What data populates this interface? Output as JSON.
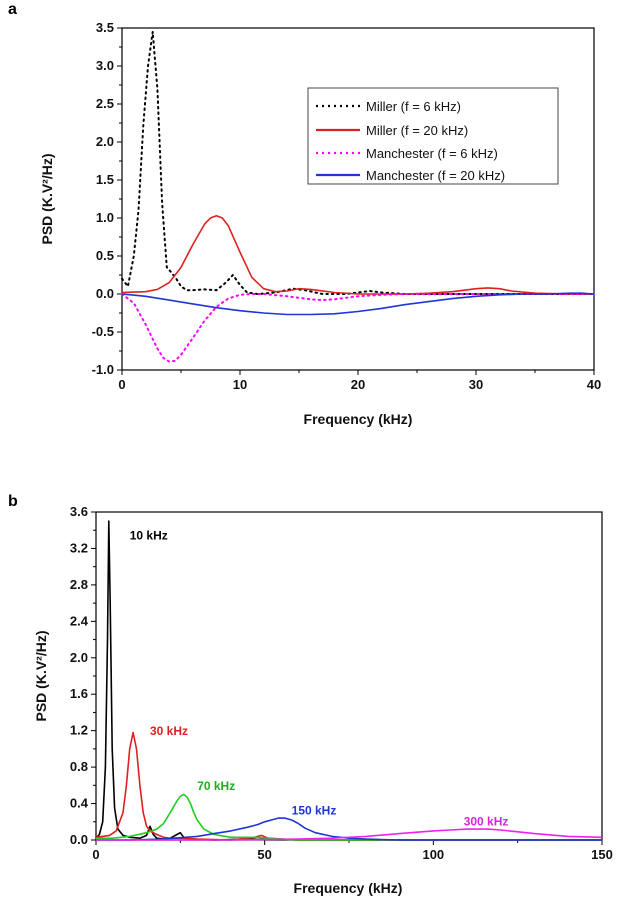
{
  "chart_data": [
    {
      "panel": "a",
      "type": "line",
      "title": "",
      "xlabel": "Frequency (kHz)",
      "ylabel": "PSD (K.V²/Hz)",
      "xlim": [
        0,
        40
      ],
      "ylim": [
        -1.0,
        3.5
      ],
      "xticks": [
        0,
        10,
        20,
        30,
        40
      ],
      "yticks": [
        -1.0,
        -0.5,
        0.0,
        0.5,
        1.0,
        1.5,
        2.0,
        2.5,
        3.0,
        3.5
      ],
      "legend_position": "top-right",
      "series": [
        {
          "name": "Miller (f = 6 kHz)",
          "color": "#000000",
          "style": "dotted",
          "x": [
            0,
            0.5,
            1.0,
            1.4,
            1.8,
            2.2,
            2.6,
            3.0,
            3.4,
            3.8,
            4.2,
            4.6,
            5.0,
            5.5,
            6.0,
            7.0,
            8.0,
            8.8,
            9.4,
            10.0,
            10.6,
            11.5,
            13.0,
            14.5,
            15.5,
            17.0,
            19.0,
            21.0,
            22.0,
            24.0,
            28.0,
            32.0,
            36.0,
            40.0
          ],
          "y": [
            0.2,
            0.1,
            0.5,
            1.1,
            2.2,
            3.0,
            3.45,
            2.7,
            1.2,
            0.35,
            0.28,
            0.2,
            0.1,
            0.05,
            0.05,
            0.06,
            0.05,
            0.15,
            0.25,
            0.12,
            0.02,
            0.0,
            0.02,
            0.07,
            0.05,
            0.0,
            0.0,
            0.04,
            0.02,
            0.0,
            0.0,
            0.0,
            0.0,
            0.0
          ]
        },
        {
          "name": "Miller (f = 20 kHz)",
          "color": "#e02020",
          "style": "solid",
          "x": [
            0,
            2,
            3,
            4,
            5,
            6,
            7,
            7.5,
            8,
            8.5,
            9,
            10,
            11,
            12,
            13,
            14,
            15,
            16,
            18,
            20,
            22,
            24,
            26,
            28,
            29,
            30,
            31,
            32,
            33,
            35,
            38,
            40
          ],
          "y": [
            0.02,
            0.03,
            0.06,
            0.15,
            0.35,
            0.65,
            0.92,
            1.0,
            1.03,
            1.0,
            0.9,
            0.55,
            0.22,
            0.07,
            0.03,
            0.04,
            0.07,
            0.06,
            0.02,
            0.0,
            0.0,
            0.0,
            0.01,
            0.03,
            0.05,
            0.07,
            0.08,
            0.07,
            0.04,
            0.01,
            0.0,
            0.0
          ]
        },
        {
          "name": "Manchester (f = 6 kHz)",
          "color": "#ff00ff",
          "style": "dotted",
          "x": [
            0,
            1,
            2,
            3,
            3.5,
            4,
            4.5,
            5,
            6,
            7,
            8,
            9,
            10,
            11,
            12,
            14,
            16,
            17,
            18,
            19,
            20,
            22,
            24,
            26,
            28,
            32,
            36,
            40
          ],
          "y": [
            0.0,
            -0.12,
            -0.4,
            -0.72,
            -0.84,
            -0.89,
            -0.88,
            -0.8,
            -0.58,
            -0.35,
            -0.17,
            -0.06,
            -0.01,
            0.0,
            0.0,
            -0.03,
            -0.07,
            -0.08,
            -0.07,
            -0.05,
            -0.03,
            -0.01,
            0.0,
            0.0,
            0.0,
            0.0,
            0.0,
            0.0
          ]
        },
        {
          "name": "Manchester (f = 20 kHz)",
          "color": "#1f35d6",
          "style": "solid",
          "x": [
            0,
            2,
            4,
            6,
            8,
            10,
            12,
            14,
            16,
            18,
            20,
            22,
            24,
            26,
            28,
            30,
            32,
            34,
            36,
            38,
            39,
            40
          ],
          "y": [
            0.0,
            -0.03,
            -0.08,
            -0.13,
            -0.18,
            -0.22,
            -0.25,
            -0.27,
            -0.27,
            -0.26,
            -0.23,
            -0.19,
            -0.14,
            -0.1,
            -0.06,
            -0.03,
            -0.01,
            0.0,
            0.0,
            0.01,
            0.01,
            0.0
          ]
        }
      ]
    },
    {
      "panel": "b",
      "type": "line",
      "title": "",
      "xlabel": "Frequency (kHz)",
      "ylabel": "PSD (K.V²/Hz)",
      "xlim": [
        0,
        150
      ],
      "ylim": [
        0.0,
        3.6
      ],
      "xticks": [
        0,
        50,
        100,
        150
      ],
      "yticks": [
        0.0,
        0.4,
        0.8,
        1.2,
        1.6,
        2.0,
        2.4,
        2.8,
        3.2,
        3.6
      ],
      "series": [
        {
          "name": "10 kHz",
          "color": "#000000",
          "x": [
            0,
            1,
            2,
            2.8,
            3.4,
            3.8,
            4.2,
            4.8,
            5.5,
            6.5,
            8,
            10,
            13,
            15,
            16,
            17,
            18,
            20,
            22,
            24,
            25,
            26,
            28,
            35,
            45,
            48,
            50,
            60,
            150
          ],
          "y": [
            0.02,
            0.06,
            0.2,
            0.8,
            2.2,
            3.5,
            2.6,
            1.0,
            0.35,
            0.12,
            0.05,
            0.03,
            0.02,
            0.05,
            0.15,
            0.06,
            0.02,
            0.01,
            0.02,
            0.06,
            0.08,
            0.03,
            0.01,
            0.0,
            0.01,
            0.03,
            0.01,
            0.0,
            0.0
          ]
        },
        {
          "name": "30 kHz",
          "color": "#e02020",
          "x": [
            0,
            4,
            6,
            8,
            9,
            10,
            11,
            12,
            13,
            14,
            15,
            16,
            18,
            20,
            22,
            25,
            30,
            40,
            47,
            49,
            51,
            60,
            150
          ],
          "y": [
            0.03,
            0.05,
            0.1,
            0.3,
            0.6,
            1.0,
            1.18,
            1.0,
            0.6,
            0.3,
            0.15,
            0.1,
            0.06,
            0.03,
            0.02,
            0.02,
            0.01,
            0.0,
            0.03,
            0.05,
            0.02,
            0.0,
            0.0
          ]
        },
        {
          "name": "70 kHz",
          "color": "#22cc22",
          "x": [
            0,
            5,
            10,
            15,
            18,
            20,
            22,
            24,
            25,
            26,
            27,
            28,
            29,
            30,
            32,
            35,
            40,
            48,
            50,
            55,
            60,
            80,
            150
          ],
          "y": [
            0.02,
            0.02,
            0.04,
            0.08,
            0.12,
            0.18,
            0.3,
            0.43,
            0.48,
            0.5,
            0.47,
            0.4,
            0.3,
            0.22,
            0.12,
            0.06,
            0.03,
            0.03,
            0.02,
            0.01,
            0.0,
            0.0,
            0.0
          ]
        },
        {
          "name": "150 kHz",
          "color": "#1f35d6",
          "x": [
            0,
            10,
            20,
            30,
            35,
            40,
            45,
            48,
            50,
            52,
            54,
            56,
            58,
            60,
            62,
            65,
            70,
            75,
            80,
            90,
            150
          ],
          "y": [
            0.0,
            0.0,
            0.01,
            0.04,
            0.07,
            0.1,
            0.14,
            0.17,
            0.2,
            0.22,
            0.24,
            0.24,
            0.22,
            0.18,
            0.13,
            0.08,
            0.04,
            0.02,
            0.01,
            0.0,
            0.0
          ]
        },
        {
          "name": "300 kHz",
          "color": "#ee22ee",
          "x": [
            0,
            20,
            40,
            60,
            70,
            80,
            90,
            100,
            105,
            110,
            113,
            116,
            120,
            125,
            130,
            140,
            150
          ],
          "y": [
            0.0,
            0.0,
            0.0,
            0.01,
            0.02,
            0.04,
            0.07,
            0.1,
            0.11,
            0.12,
            0.12,
            0.12,
            0.11,
            0.09,
            0.07,
            0.04,
            0.03
          ]
        }
      ],
      "annotations": [
        {
          "text": "10 kHz",
          "x": 10,
          "y": 3.3,
          "color": "#000000"
        },
        {
          "text": "30 kHz",
          "x": 16,
          "y": 1.15,
          "color": "#e02020"
        },
        {
          "text": "70 kHz",
          "x": 30,
          "y": 0.55,
          "color": "#22aa22"
        },
        {
          "text": "150 kHz",
          "x": 58,
          "y": 0.28,
          "color": "#1f35d6"
        },
        {
          "text": "300 kHz",
          "x": 109,
          "y": 0.16,
          "color": "#dd22dd"
        }
      ]
    }
  ]
}
